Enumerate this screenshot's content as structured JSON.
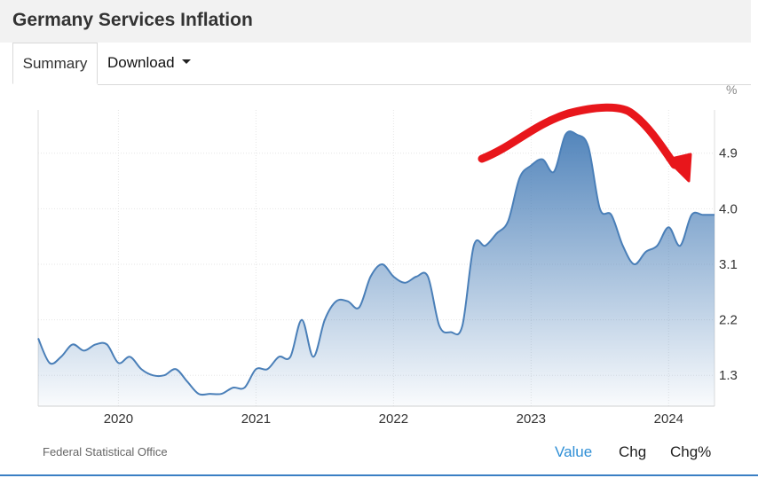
{
  "header": {
    "title": "Germany Services Inflation"
  },
  "tabs": {
    "summary": "Summary",
    "download": "Download"
  },
  "footer": {
    "source": "Federal Statistical Office",
    "buttons": {
      "value": "Value",
      "chg": "Chg",
      "chg_pct": "Chg%"
    }
  },
  "colors": {
    "line": "#4a7fb8",
    "fill_top": "#4a7fb8",
    "annotation": "#e8161b",
    "active_button": "#2f8fd6"
  },
  "chart_data": {
    "type": "area",
    "title": "Germany Services Inflation",
    "xlabel": "",
    "ylabel": "",
    "unit": "%",
    "ylim": [
      0.8,
      5.6
    ],
    "y_ticks": [
      1.3,
      2.2,
      3.1,
      4.0,
      4.9
    ],
    "y_tick_labels": [
      "1.3",
      "2.2",
      "3.1",
      "4.0",
      "4.9"
    ],
    "x_tick_labels": [
      "2020",
      "2021",
      "2022",
      "2023",
      "2024"
    ],
    "grid": true,
    "annotation": "red hand-drawn arrow over 2023 peak curving downward",
    "x": [
      "2019-06",
      "2019-07",
      "2019-08",
      "2019-09",
      "2019-10",
      "2019-11",
      "2019-12",
      "2020-01",
      "2020-02",
      "2020-03",
      "2020-04",
      "2020-05",
      "2020-06",
      "2020-07",
      "2020-08",
      "2020-09",
      "2020-10",
      "2020-11",
      "2020-12",
      "2021-01",
      "2021-02",
      "2021-03",
      "2021-04",
      "2021-05",
      "2021-06",
      "2021-07",
      "2021-08",
      "2021-09",
      "2021-10",
      "2021-11",
      "2021-12",
      "2022-01",
      "2022-02",
      "2022-03",
      "2022-04",
      "2022-05",
      "2022-06",
      "2022-07",
      "2022-08",
      "2022-09",
      "2022-10",
      "2022-11",
      "2022-12",
      "2023-01",
      "2023-02",
      "2023-03",
      "2023-04",
      "2023-05",
      "2023-06",
      "2023-07",
      "2023-08",
      "2023-09",
      "2023-10",
      "2023-11",
      "2023-12",
      "2024-01",
      "2024-02",
      "2024-03",
      "2024-04",
      "2024-05"
    ],
    "series": [
      {
        "values": [
          1.9,
          1.5,
          1.6,
          1.8,
          1.7,
          1.8,
          1.8,
          1.5,
          1.6,
          1.4,
          1.3,
          1.3,
          1.4,
          1.2,
          1.0,
          1.0,
          1.0,
          1.1,
          1.1,
          1.4,
          1.4,
          1.6,
          1.6,
          2.2,
          1.6,
          2.2,
          2.5,
          2.5,
          2.4,
          2.9,
          3.1,
          2.9,
          2.8,
          2.9,
          2.9,
          2.1,
          2.0,
          2.1,
          3.4,
          3.4,
          3.6,
          3.8,
          4.5,
          4.7,
          4.8,
          4.6,
          5.2,
          5.2,
          5.0,
          4.0,
          3.9,
          3.4,
          3.1,
          3.3,
          3.4,
          3.7,
          3.4,
          3.9,
          3.9,
          3.9
        ]
      }
    ]
  }
}
